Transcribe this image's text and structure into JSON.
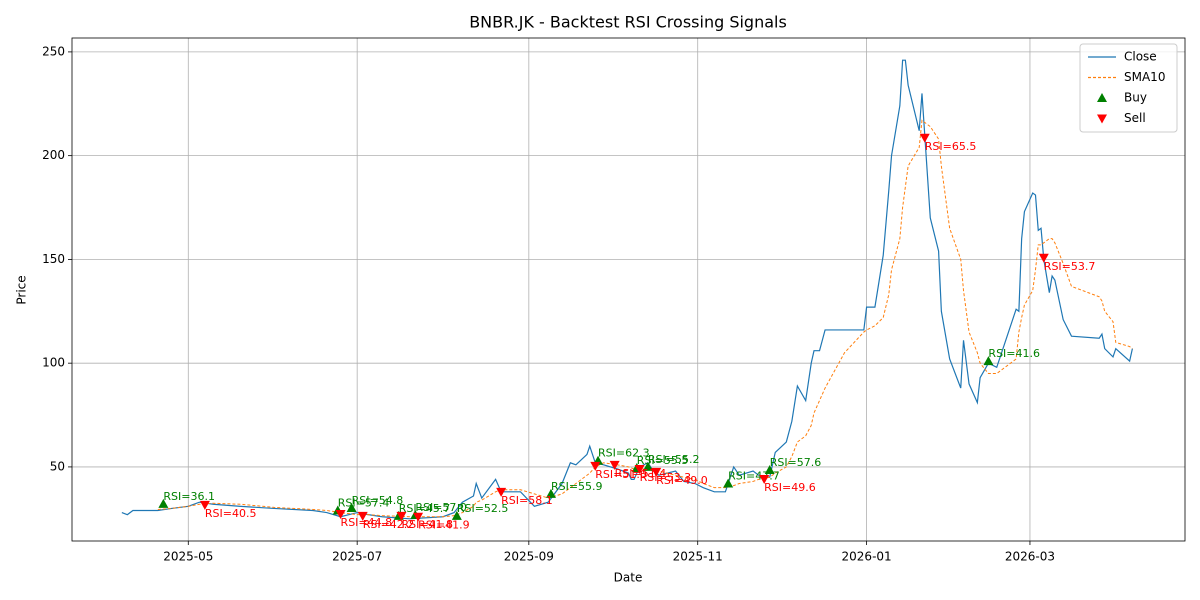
{
  "chart_data": {
    "type": "line",
    "title": "BNBR.JK - Backtest RSI Crossing Signals",
    "x_label": "Date",
    "y_label": "Price",
    "xlim": [
      "2025-03-20",
      "2026-04-26"
    ],
    "ylim": [
      14.3,
      256.7
    ],
    "xticks": [
      {
        "value": "2025-05-01",
        "label": "2025-05"
      },
      {
        "value": "2025-07-01",
        "label": "2025-07"
      },
      {
        "value": "2025-09-01",
        "label": "2025-09"
      },
      {
        "value": "2025-11-01",
        "label": "2025-11"
      },
      {
        "value": "2026-01-01",
        "label": "2026-01"
      },
      {
        "value": "2026-03-01",
        "label": "2026-03"
      }
    ],
    "yticks": [
      50,
      100,
      150,
      200,
      250
    ],
    "grid": true,
    "legend": "upper right",
    "x": [
      "2025-04-07",
      "2025-04-09",
      "2025-04-11",
      "2025-04-20",
      "2025-04-25",
      "2025-05-01",
      "2025-05-05",
      "2025-05-10",
      "2025-05-20",
      "2025-06-01",
      "2025-06-15",
      "2025-06-20",
      "2025-06-25",
      "2025-07-01",
      "2025-07-05",
      "2025-07-10",
      "2025-07-20",
      "2025-08-01",
      "2025-08-05",
      "2025-08-08",
      "2025-08-12",
      "2025-08-13",
      "2025-08-15",
      "2025-08-20",
      "2025-08-22",
      "2025-08-29",
      "2025-09-03",
      "2025-09-08",
      "2025-09-13",
      "2025-09-16",
      "2025-09-18",
      "2025-09-22",
      "2025-09-23",
      "2025-09-25",
      "2025-09-28",
      "2025-10-03",
      "2025-10-07",
      "2025-10-08",
      "2025-10-09",
      "2025-10-11",
      "2025-10-14",
      "2025-10-16",
      "2025-10-18",
      "2025-10-24",
      "2025-10-27",
      "2025-10-31",
      "2025-11-03",
      "2025-11-07",
      "2025-11-11",
      "2025-11-14",
      "2025-11-16",
      "2025-11-21",
      "2025-11-23",
      "2025-11-27",
      "2025-11-29",
      "2025-12-03",
      "2025-12-05",
      "2025-12-07",
      "2025-12-10",
      "2025-12-12",
      "2025-12-13",
      "2025-12-15",
      "2025-12-17",
      "2025-12-24",
      "2025-12-31",
      "2026-01-01",
      "2026-01-04",
      "2026-01-07",
      "2026-01-09",
      "2026-01-10",
      "2026-01-13",
      "2026-01-14",
      "2026-01-15",
      "2026-01-16",
      "2026-01-20",
      "2026-01-21",
      "2026-01-24",
      "2026-01-27",
      "2026-01-28",
      "2026-01-31",
      "2026-02-04",
      "2026-02-05",
      "2026-02-07",
      "2026-02-10",
      "2026-02-11",
      "2026-02-14",
      "2026-02-17",
      "2026-02-20",
      "2026-02-24",
      "2026-02-25",
      "2026-02-26",
      "2026-02-27",
      "2026-03-02",
      "2026-03-03",
      "2026-03-04",
      "2026-03-05",
      "2026-03-06",
      "2026-03-08",
      "2026-03-09",
      "2026-03-10",
      "2026-03-13",
      "2026-03-16",
      "2026-03-26",
      "2026-03-27",
      "2026-03-28",
      "2026-03-31",
      "2026-04-01",
      "2026-04-06",
      "2026-04-07"
    ],
    "series": [
      {
        "name": "Close",
        "type": "line",
        "color": "#1f77b4",
        "dashed": false,
        "values": [
          28,
          27,
          29,
          29,
          30,
          31,
          33,
          32,
          31,
          30,
          29,
          28,
          26,
          28,
          27,
          26,
          25,
          26,
          28,
          33,
          36,
          42,
          35,
          44,
          38,
          38,
          31,
          33,
          42,
          52,
          51,
          56,
          60,
          52,
          51,
          49,
          47,
          44,
          44,
          50,
          52,
          48,
          46,
          48,
          43,
          42,
          40,
          38,
          38,
          50,
          46,
          48,
          46,
          45,
          57,
          62,
          72,
          89,
          82,
          100,
          106,
          106,
          116,
          116,
          116,
          127,
          127,
          152,
          183,
          200,
          224,
          246,
          246,
          234,
          212,
          230,
          170,
          154,
          125,
          102,
          88,
          111,
          90,
          81,
          93,
          100,
          98,
          110,
          126,
          125,
          160,
          173,
          182,
          181,
          164,
          165,
          150,
          134,
          142,
          140,
          121,
          113,
          112,
          114,
          107,
          103,
          107,
          101,
          107
        ]
      },
      {
        "name": "SMA10",
        "type": "line",
        "color": "#ff7f0e",
        "dashed": true,
        "values": [
          null,
          null,
          null,
          29.5,
          30,
          31,
          32,
          32.5,
          32,
          30.5,
          29.5,
          29,
          28,
          27,
          27,
          26.5,
          26,
          26,
          26.5,
          28,
          31,
          33,
          34,
          38,
          39,
          39,
          37,
          35,
          37,
          40,
          42,
          46,
          47,
          50,
          52,
          51,
          50,
          49.5,
          49,
          49,
          49,
          48.5,
          48,
          46,
          45,
          44,
          42,
          40,
          40,
          41,
          42,
          43,
          44,
          45,
          47,
          50,
          55,
          62,
          65,
          70,
          76,
          82,
          88,
          105,
          115,
          116,
          118,
          122,
          133,
          145,
          160,
          175,
          185,
          195,
          204,
          217,
          214,
          208,
          195,
          165,
          150,
          135,
          115,
          105,
          100,
          95,
          95,
          98,
          102,
          115,
          122,
          128,
          135,
          145,
          157,
          157,
          158,
          160,
          160,
          158,
          148,
          137,
          132,
          130,
          125,
          120,
          110,
          108,
          107
        ]
      },
      {
        "name": "Buy",
        "type": "scatter",
        "color": "#008000",
        "marker": "up",
        "x": [
          "2025-04-22",
          "2025-06-24",
          "2025-06-29",
          "2025-07-16",
          "2025-07-22",
          "2025-08-06",
          "2025-09-09",
          "2025-09-26",
          "2025-10-10",
          "2025-10-14",
          "2025-11-12",
          "2025-11-27",
          "2026-02-14"
        ],
        "values": [
          32.2,
          29,
          30.2,
          26.4,
          26.8,
          26.4,
          37,
          53,
          49.5,
          50,
          42,
          48.5,
          101
        ],
        "annotations": [
          "RSI=36.1",
          "RSI=57.4",
          "RSI=54.8",
          "RSI=45.7",
          "RSI=57.0",
          "RSI=52.5",
          "RSI=55.9",
          "RSI=62.3",
          "RSI=55.5",
          "RSI=55.2",
          "RSI=47.7",
          "RSI=57.6",
          "RSI=41.6"
        ]
      },
      {
        "name": "Sell",
        "type": "scatter",
        "color": "#ff0000",
        "marker": "down",
        "x": [
          "2025-05-07",
          "2025-06-25",
          "2025-07-03",
          "2025-07-17",
          "2025-07-23",
          "2025-08-22",
          "2025-09-25",
          "2025-10-02",
          "2025-10-11",
          "2025-10-17",
          "2025-11-25",
          "2026-01-22",
          "2026-03-06"
        ],
        "values": [
          31.7,
          27.3,
          26.4,
          26.4,
          26,
          38,
          50.5,
          51,
          49,
          47.6,
          44.2,
          208.6,
          150.8
        ],
        "annotations": [
          "RSI=40.5",
          "RSI=44.8",
          "RSI=42.2",
          "RSI=41.8",
          "RSI=41.9",
          "RSI=58.1",
          "RSI=51.0",
          "RSI=51.4",
          "RSI=53.3",
          "RSI=49.0",
          "RSI=49.6",
          "RSI=65.5",
          "RSI=53.7"
        ]
      }
    ]
  }
}
